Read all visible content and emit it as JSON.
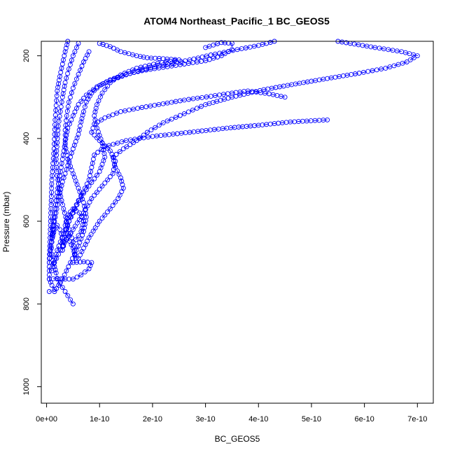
{
  "chart_data": {
    "type": "scatter",
    "title": "ATOM4 Northeast_Pacific_1 BC_GEOS5",
    "xlabel": "BC_GEOS5",
    "ylabel": "Pressure (mbar)",
    "xlim": [
      -1e-11,
      7.3e-10
    ],
    "ylim": [
      1040,
      165
    ],
    "y_reversed": true,
    "x_ticks": [
      0,
      1e-10,
      2e-10,
      3e-10,
      4e-10,
      5e-10,
      6e-10,
      7e-10
    ],
    "x_tick_labels": [
      "0e+00",
      "1e-10",
      "2e-10",
      "3e-10",
      "4e-10",
      "5e-10",
      "6e-10",
      "7e-10"
    ],
    "y_ticks": [
      200,
      400,
      600,
      800,
      1000
    ],
    "y_tick_labels": [
      "200",
      "400",
      "600",
      "800",
      "1000"
    ],
    "color": "#0000ff",
    "marker": "open-circle",
    "series": [
      {
        "points": [
          [
            5.5e-10,
            165
          ],
          [
            6.2e-10,
            180
          ],
          [
            6.7e-10,
            190
          ],
          [
            7e-10,
            200
          ],
          [
            6.8e-10,
            215
          ],
          [
            6.4e-10,
            230
          ],
          [
            5.9e-10,
            242
          ],
          [
            5.3e-10,
            255
          ],
          [
            4.7e-10,
            268
          ],
          [
            4.1e-10,
            282
          ],
          [
            3.5e-10,
            300
          ],
          [
            3e-10,
            318
          ],
          [
            2.6e-10,
            340
          ],
          [
            2.2e-10,
            362
          ],
          [
            1.9e-10,
            385
          ],
          [
            1.7e-10,
            405
          ],
          [
            1.45e-10,
            425
          ],
          [
            1.25e-10,
            445
          ],
          [
            1.3e-10,
            470
          ],
          [
            1.4e-10,
            495
          ],
          [
            1.45e-10,
            520
          ],
          [
            1.35e-10,
            545
          ],
          [
            1.2e-10,
            570
          ],
          [
            1e-10,
            600
          ],
          [
            8e-11,
            640
          ],
          [
            6e-11,
            690
          ]
        ]
      },
      {
        "points": [
          [
            5.3e-10,
            355
          ],
          [
            4.6e-10,
            360
          ],
          [
            4e-10,
            368
          ],
          [
            3.4e-10,
            375
          ],
          [
            2.7e-10,
            385
          ],
          [
            2e-10,
            395
          ],
          [
            1.5e-10,
            405
          ],
          [
            1.1e-10,
            420
          ],
          [
            9e-11,
            440
          ],
          [
            8.5e-11,
            470
          ],
          [
            8e-11,
            500
          ],
          [
            6.5e-11,
            540
          ],
          [
            5e-11,
            580
          ],
          [
            3.5e-11,
            620
          ],
          [
            2e-11,
            670
          ],
          [
            1e-11,
            720
          ]
        ]
      },
      {
        "points": [
          [
            4.5e-10,
            300
          ],
          [
            4.2e-10,
            292
          ],
          [
            3.8e-10,
            285
          ],
          [
            3.5e-10,
            290
          ],
          [
            3.1e-10,
            298
          ],
          [
            2.6e-10,
            307
          ],
          [
            2.2e-10,
            316
          ],
          [
            1.8e-10,
            325
          ],
          [
            1.4e-10,
            335
          ],
          [
            1.1e-10,
            350
          ],
          [
            9e-11,
            365
          ],
          [
            8.5e-11,
            385
          ],
          [
            1e-10,
            405
          ],
          [
            1.2e-10,
            430
          ],
          [
            1.3e-10,
            455
          ],
          [
            1.25e-10,
            485
          ],
          [
            1.05e-10,
            515
          ],
          [
            8.5e-11,
            545
          ],
          [
            7e-11,
            580
          ],
          [
            5e-11,
            620
          ],
          [
            3e-11,
            660
          ],
          [
            1.5e-11,
            700
          ]
        ]
      },
      {
        "points": [
          [
            4.3e-10,
            165
          ],
          [
            4e-10,
            175
          ],
          [
            3.6e-10,
            185
          ],
          [
            3.1e-10,
            198
          ],
          [
            2.7e-10,
            210
          ],
          [
            2.2e-10,
            222
          ],
          [
            1.8e-10,
            234
          ],
          [
            1.5e-10,
            246
          ],
          [
            1.2e-10,
            260
          ],
          [
            9.5e-11,
            275
          ],
          [
            7.5e-11,
            295
          ],
          [
            6e-11,
            318
          ],
          [
            5e-11,
            345
          ],
          [
            4e-11,
            375
          ],
          [
            3.5e-11,
            410
          ],
          [
            3e-11,
            450
          ],
          [
            2.5e-11,
            490
          ],
          [
            2e-11,
            530
          ],
          [
            1.5e-11,
            580
          ],
          [
            1e-11,
            640
          ],
          [
            5e-12,
            700
          ]
        ]
      },
      {
        "points": [
          [
            3e-10,
            180
          ],
          [
            3.3e-10,
            168
          ],
          [
            3.5e-10,
            170
          ],
          [
            3.5e-10,
            185
          ],
          [
            3.3e-10,
            200
          ],
          [
            3e-10,
            212
          ],
          [
            2.6e-10,
            220
          ],
          [
            2.2e-10,
            228
          ],
          [
            1.8e-10,
            236
          ],
          [
            1.5e-10,
            245
          ],
          [
            1.2e-10,
            258
          ],
          [
            1e-10,
            272
          ],
          [
            8.5e-11,
            290
          ],
          [
            7.5e-11,
            312
          ],
          [
            7e-11,
            335
          ],
          [
            6.5e-11,
            360
          ],
          [
            6e-11,
            390
          ],
          [
            5e-11,
            425
          ],
          [
            4e-11,
            465
          ],
          [
            3e-11,
            505
          ],
          [
            2.2e-11,
            550
          ],
          [
            1.5e-11,
            600
          ],
          [
            1e-11,
            650
          ]
        ]
      },
      {
        "points": [
          [
            1e-10,
            170
          ],
          [
            1.2e-10,
            178
          ],
          [
            1.4e-10,
            190
          ],
          [
            1.7e-10,
            200
          ],
          [
            1.9e-10,
            205
          ],
          [
            2.2e-10,
            207
          ],
          [
            2.5e-10,
            210
          ],
          [
            2.1e-10,
            218
          ],
          [
            1.7e-10,
            230
          ],
          [
            1.4e-10,
            246
          ],
          [
            1.2e-10,
            265
          ],
          [
            1.05e-10,
            290
          ],
          [
            9.5e-11,
            318
          ],
          [
            9e-11,
            345
          ],
          [
            9.5e-11,
            375
          ],
          [
            1.05e-10,
            410
          ],
          [
            1.1e-10,
            445
          ],
          [
            1e-10,
            480
          ],
          [
            8e-11,
            515
          ],
          [
            6e-11,
            550
          ],
          [
            4.5e-11,
            590
          ],
          [
            3.5e-11,
            630
          ],
          [
            3e-11,
            670
          ]
        ]
      },
      {
        "points": [
          [
            4e-11,
            165
          ],
          [
            3.5e-11,
            190
          ],
          [
            3e-11,
            220
          ],
          [
            2.5e-11,
            250
          ],
          [
            2e-11,
            285
          ],
          [
            1.8e-11,
            320
          ],
          [
            1.6e-11,
            355
          ],
          [
            1.5e-11,
            390
          ],
          [
            1.4e-11,
            425
          ],
          [
            1.2e-11,
            460
          ],
          [
            1e-11,
            500
          ],
          [
            9e-12,
            540
          ],
          [
            8e-12,
            580
          ],
          [
            7e-12,
            620
          ],
          [
            6e-12,
            660
          ],
          [
            5e-12,
            700
          ],
          [
            5e-12,
            740
          ]
        ]
      },
      {
        "points": [
          [
            6e-11,
            170
          ],
          [
            5e-11,
            200
          ],
          [
            4.2e-11,
            232
          ],
          [
            3.5e-11,
            265
          ],
          [
            3e-11,
            300
          ],
          [
            2.6e-11,
            335
          ],
          [
            2.2e-11,
            370
          ],
          [
            2e-11,
            410
          ],
          [
            1.8e-11,
            450
          ],
          [
            2e-11,
            490
          ],
          [
            2.5e-11,
            530
          ],
          [
            3.2e-11,
            570
          ],
          [
            4e-11,
            610
          ],
          [
            5e-11,
            650
          ],
          [
            5.5e-11,
            690
          ]
        ]
      },
      {
        "points": [
          [
            8e-11,
            190
          ],
          [
            7e-11,
            215
          ],
          [
            6e-11,
            245
          ],
          [
            5e-11,
            278
          ],
          [
            4.2e-11,
            312
          ],
          [
            3.8e-11,
            345
          ],
          [
            3.5e-11,
            380
          ],
          [
            3.5e-11,
            415
          ],
          [
            4e-11,
            450
          ],
          [
            5e-11,
            485
          ],
          [
            6e-11,
            520
          ],
          [
            7e-11,
            555
          ],
          [
            7.5e-11,
            590
          ],
          [
            7e-11,
            625
          ],
          [
            6e-11,
            660
          ],
          [
            4.5e-11,
            700
          ],
          [
            3e-11,
            740
          ],
          [
            1.5e-11,
            770
          ]
        ]
      },
      {
        "points": [
          [
            5e-11,
            700
          ],
          [
            7e-11,
            698
          ],
          [
            8.5e-11,
            700
          ],
          [
            8e-11,
            715
          ],
          [
            6.5e-11,
            730
          ],
          [
            5e-11,
            740
          ],
          [
            3.5e-11,
            740
          ],
          [
            2e-11,
            738
          ],
          [
            5e-12,
            740
          ],
          [
            1e-11,
            755
          ],
          [
            1.5e-11,
            765
          ],
          [
            5e-12,
            770
          ]
        ]
      },
      {
        "points": [
          [
            5e-11,
            800
          ],
          [
            4.5e-11,
            790
          ],
          [
            4e-11,
            780
          ],
          [
            3.5e-11,
            770
          ],
          [
            3e-11,
            760
          ],
          [
            2.5e-11,
            750
          ],
          [
            2e-11,
            740
          ],
          [
            1.8e-11,
            725
          ],
          [
            1.5e-11,
            710
          ],
          [
            1.2e-11,
            695
          ],
          [
            1e-11,
            680
          ],
          [
            9e-12,
            665
          ],
          [
            1e-11,
            650
          ],
          [
            1.2e-11,
            635
          ],
          [
            1.5e-11,
            620
          ],
          [
            2e-11,
            610
          ],
          [
            2.5e-11,
            620
          ],
          [
            3e-11,
            640
          ],
          [
            3.2e-11,
            660
          ],
          [
            3e-11,
            670
          ]
        ]
      },
      {
        "points": [
          [
            5.5e-11,
            645
          ],
          [
            6.5e-11,
            625
          ],
          [
            7e-11,
            600
          ],
          [
            6.2e-11,
            580
          ],
          [
            5e-11,
            570
          ],
          [
            4e-11,
            585
          ],
          [
            3.5e-11,
            610
          ],
          [
            4e-11,
            640
          ],
          [
            5e-11,
            665
          ],
          [
            5.5e-11,
            690
          ]
        ]
      }
    ]
  }
}
